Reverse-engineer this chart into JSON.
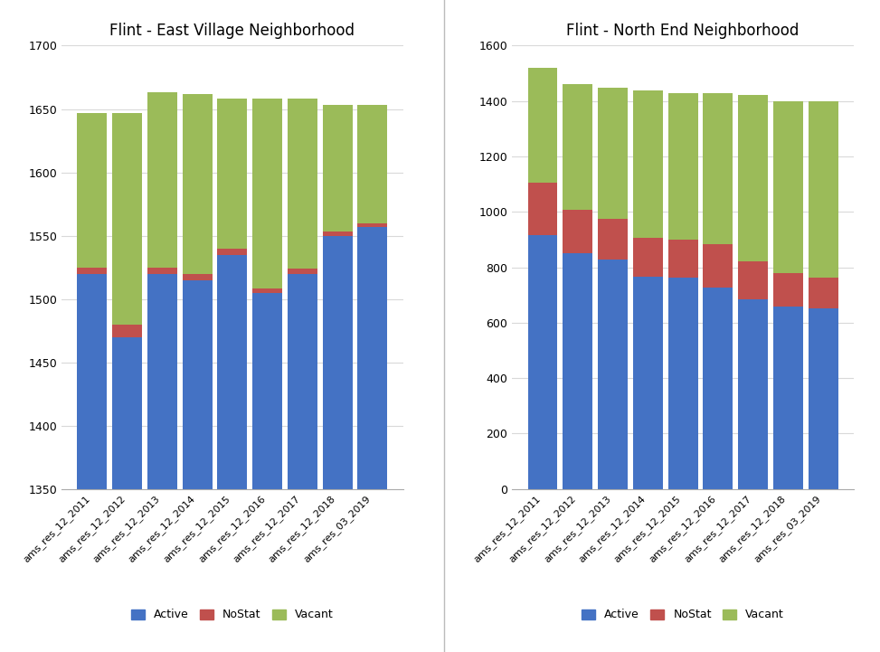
{
  "categories": [
    "ams_res_12_2011",
    "ams_res_12_2012",
    "ams_res_12_2013",
    "ams_res_12_2014",
    "ams_res_12_2015",
    "ams_res_12_2016",
    "ams_res_12_2017",
    "ams_res_12_2018",
    "ams_res_03_2019"
  ],
  "left_title": "Flint - East Village Neighborhood",
  "left_active": [
    1520,
    1470,
    1520,
    1515,
    1535,
    1505,
    1520,
    1550,
    1557
  ],
  "left_nostat": [
    5,
    10,
    5,
    5,
    5,
    3,
    4,
    3,
    3
  ],
  "left_vacant": [
    122,
    167,
    138,
    142,
    118,
    150,
    134,
    100,
    93
  ],
  "left_ylim": [
    1350,
    1700
  ],
  "left_yticks": [
    1350,
    1400,
    1450,
    1500,
    1550,
    1600,
    1650,
    1700
  ],
  "right_title": "Flint - North End Neighborhood",
  "right_active": [
    915,
    850,
    828,
    765,
    763,
    727,
    685,
    660,
    653
  ],
  "right_nostat": [
    190,
    158,
    148,
    143,
    138,
    158,
    138,
    118,
    110
  ],
  "right_vacant": [
    415,
    452,
    472,
    530,
    527,
    543,
    598,
    622,
    637
  ],
  "right_ylim": [
    0,
    1600
  ],
  "right_yticks": [
    0,
    200,
    400,
    600,
    800,
    1000,
    1200,
    1400,
    1600
  ],
  "color_active": "#4472C4",
  "color_nostat": "#C0504D",
  "color_vacant": "#9BBB59",
  "bar_width": 0.85,
  "fig_width": 9.73,
  "fig_height": 7.21,
  "background_color": "#FFFFFF",
  "grid_color": "#D9D9D9",
  "spine_color": "#AAAAAA"
}
